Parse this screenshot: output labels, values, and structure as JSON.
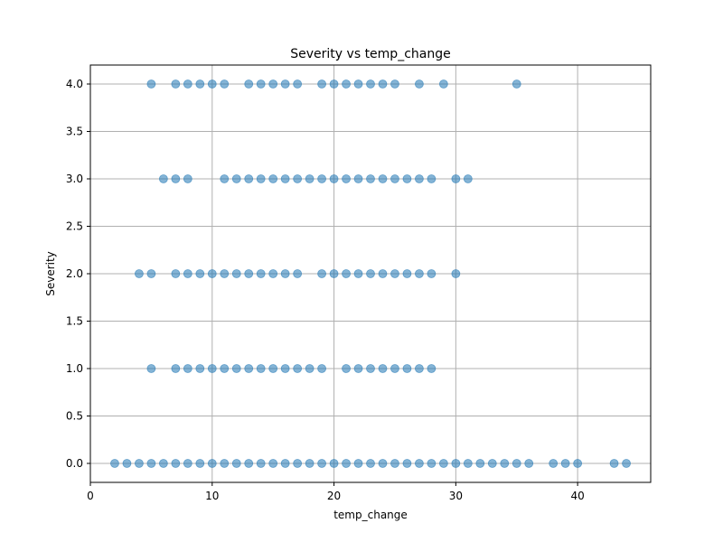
{
  "chart_data": {
    "type": "scatter",
    "title": "Severity vs temp_change",
    "xlabel": "temp_change",
    "ylabel": "Severity",
    "xlim": [
      0,
      46
    ],
    "ylim": [
      -0.2,
      4.2
    ],
    "x_ticks": [
      0,
      10,
      20,
      30,
      40
    ],
    "y_ticks": [
      0.0,
      0.5,
      1.0,
      1.5,
      2.0,
      2.5,
      3.0,
      3.5,
      4.0
    ],
    "x_tick_labels": [
      "0",
      "10",
      "20",
      "30",
      "40"
    ],
    "y_tick_labels": [
      "0.0",
      "0.5",
      "1.0",
      "1.5",
      "2.0",
      "2.5",
      "3.0",
      "3.5",
      "4.0"
    ],
    "grid": true,
    "colors": {
      "points": "#1f77b4",
      "grid": "#b0b0b0",
      "axis": "#000000"
    },
    "series": [
      {
        "values": [
          {
            "y": 4.0,
            "x": [
              5,
              7,
              8,
              9,
              10,
              11,
              13,
              14,
              15,
              16,
              17,
              19,
              20,
              21,
              22,
              23,
              24,
              25,
              27,
              29,
              35
            ]
          },
          {
            "y": 3.0,
            "x": [
              6,
              7,
              8,
              11,
              12,
              13,
              14,
              15,
              16,
              17,
              18,
              19,
              20,
              21,
              22,
              23,
              24,
              25,
              26,
              27,
              28,
              30,
              31
            ]
          },
          {
            "y": 2.0,
            "x": [
              4,
              5,
              7,
              8,
              9,
              10,
              11,
              12,
              13,
              14,
              15,
              16,
              17,
              19,
              20,
              21,
              22,
              23,
              24,
              25,
              26,
              27,
              28,
              30
            ]
          },
          {
            "y": 1.0,
            "x": [
              5,
              7,
              8,
              9,
              10,
              11,
              12,
              13,
              14,
              15,
              16,
              17,
              18,
              19,
              21,
              22,
              23,
              24,
              25,
              26,
              27,
              28
            ]
          },
          {
            "y": 0.0,
            "x": [
              2,
              3,
              4,
              5,
              6,
              7,
              8,
              9,
              10,
              11,
              12,
              13,
              14,
              15,
              16,
              17,
              18,
              19,
              20,
              21,
              22,
              23,
              24,
              25,
              26,
              27,
              28,
              29,
              30,
              31,
              32,
              33,
              34,
              35,
              36,
              38,
              39,
              40,
              43,
              44
            ]
          }
        ]
      }
    ]
  }
}
